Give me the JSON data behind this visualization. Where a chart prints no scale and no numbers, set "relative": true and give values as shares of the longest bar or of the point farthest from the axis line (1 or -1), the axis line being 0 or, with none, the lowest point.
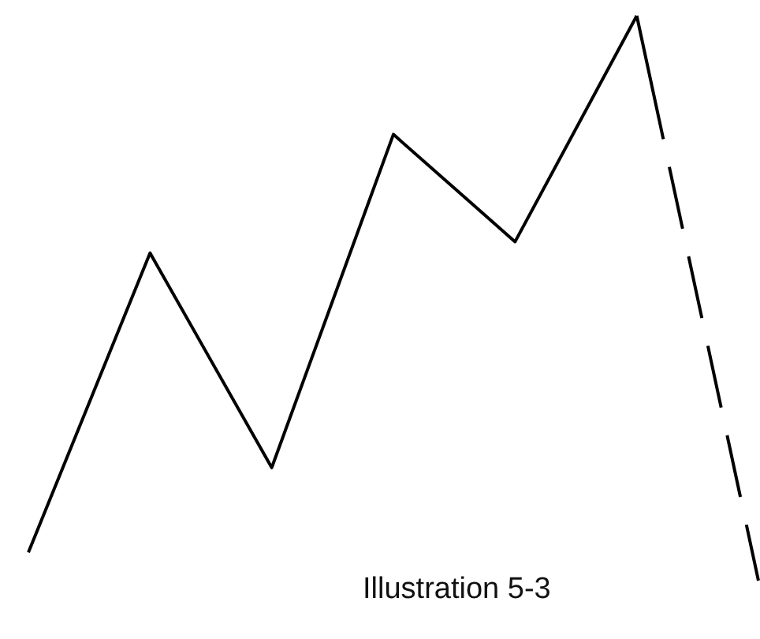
{
  "chart_data": {
    "type": "line",
    "relative": true,
    "marker": "none",
    "annotations": [
      "Illustration 5-3"
    ],
    "categories": [
      null,
      null,
      null,
      null,
      null,
      null,
      null
    ],
    "series": [
      {
        "color": "#000000",
        "line_style": "solid",
        "values": [
          0.05,
          0.58,
          0.2,
          0.79,
          0.6,
          1,
          null
        ]
      },
      {
        "color": "#000000",
        "line_style": "dashed",
        "values": [
          null,
          null,
          null,
          null,
          null,
          1,
          0
        ]
      }
    ]
  }
}
